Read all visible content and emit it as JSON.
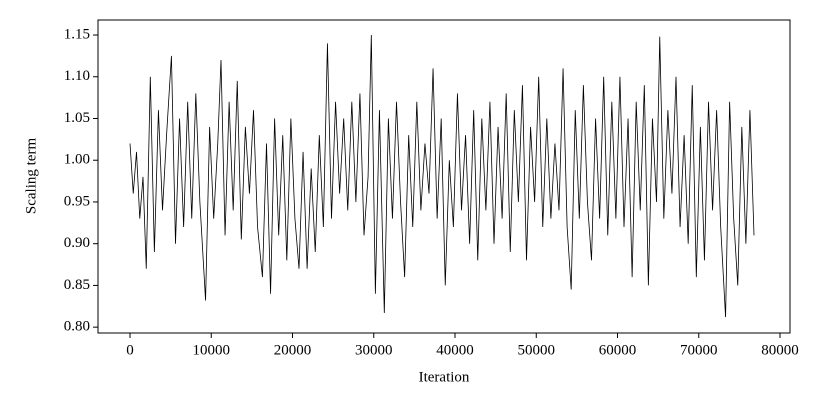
{
  "chart_data": {
    "type": "line",
    "xlabel": "Iteration",
    "ylabel": "Scaling term",
    "color": "#000000",
    "x": [
      0,
      400,
      800,
      1200,
      1600,
      2000,
      2500,
      3000,
      3500,
      4000,
      4500,
      5100,
      5600,
      6100,
      6600,
      7100,
      7600,
      8100,
      8600,
      9300,
      9800,
      10300,
      10800,
      11200,
      11700,
      12200,
      12700,
      13200,
      13700,
      14200,
      14700,
      15200,
      15700,
      16300,
      16800,
      17300,
      17800,
      18300,
      18800,
      19300,
      19800,
      20300,
      20800,
      21300,
      21800,
      22300,
      22800,
      23300,
      23800,
      24300,
      24800,
      25300,
      25800,
      26300,
      26800,
      27300,
      27800,
      28300,
      28800,
      29300,
      29700,
      30200,
      30700,
      31300,
      31800,
      32300,
      32800,
      33300,
      33800,
      34300,
      34800,
      35300,
      35800,
      36300,
      36800,
      37300,
      37800,
      38300,
      38800,
      39300,
      39800,
      40300,
      40800,
      41300,
      41800,
      42300,
      42800,
      43300,
      43800,
      44300,
      44800,
      45300,
      45800,
      46300,
      46800,
      47300,
      47800,
      48300,
      48800,
      49300,
      49800,
      50300,
      50800,
      51300,
      51800,
      52300,
      52800,
      53300,
      53800,
      54300,
      54800,
      55300,
      55800,
      56300,
      56800,
      57300,
      57800,
      58300,
      58800,
      59300,
      59800,
      60300,
      60800,
      61300,
      61800,
      62300,
      62800,
      63300,
      63800,
      64300,
      64800,
      65200,
      65700,
      66200,
      66700,
      67200,
      67700,
      68200,
      68700,
      69200,
      69700,
      70200,
      70700,
      71200,
      71700,
      72200,
      72700,
      73300,
      73800,
      74300,
      74800,
      75300,
      75800,
      76300,
      76800
    ],
    "values": [
      1.02,
      0.96,
      1.01,
      0.93,
      0.98,
      0.87,
      1.1,
      0.89,
      1.06,
      0.94,
      1.03,
      1.125,
      0.9,
      1.05,
      0.92,
      1.07,
      0.93,
      1.08,
      0.95,
      0.832,
      1.04,
      0.93,
      1.02,
      1.12,
      0.91,
      1.07,
      0.94,
      1.095,
      0.905,
      1.04,
      0.96,
      1.06,
      0.92,
      0.86,
      1.02,
      0.84,
      1.05,
      0.91,
      1.03,
      0.88,
      1.05,
      0.93,
      0.87,
      1.01,
      0.87,
      0.99,
      0.89,
      1.03,
      0.92,
      1.14,
      0.93,
      1.07,
      0.96,
      1.05,
      0.94,
      1.07,
      0.95,
      1.08,
      0.91,
      0.98,
      1.15,
      0.84,
      1.06,
      0.817,
      1.05,
      0.93,
      1.07,
      0.95,
      0.86,
      1.03,
      0.92,
      1.07,
      0.94,
      1.02,
      0.96,
      1.11,
      0.93,
      1.05,
      0.85,
      1.0,
      0.92,
      1.08,
      0.94,
      1.03,
      0.9,
      1.06,
      0.88,
      1.05,
      0.94,
      1.07,
      0.9,
      1.04,
      0.93,
      1.08,
      0.89,
      1.06,
      0.95,
      1.09,
      0.88,
      1.04,
      0.95,
      1.1,
      0.92,
      1.05,
      0.93,
      1.02,
      0.94,
      1.11,
      0.92,
      0.845,
      1.06,
      0.93,
      1.09,
      0.95,
      0.88,
      1.05,
      0.93,
      1.1,
      0.91,
      1.07,
      0.93,
      1.1,
      0.92,
      1.05,
      0.86,
      1.07,
      0.94,
      1.09,
      0.85,
      1.05,
      0.95,
      1.148,
      0.93,
      1.06,
      0.96,
      1.1,
      0.92,
      1.03,
      0.9,
      1.09,
      0.86,
      1.04,
      0.88,
      1.07,
      0.94,
      1.06,
      0.92,
      0.812,
      1.07,
      0.93,
      0.85,
      1.04,
      0.9,
      1.06,
      0.91
    ],
    "xlim": [
      -3938,
      81230
    ],
    "ylim": [
      0.793,
      1.168
    ],
    "xticks": [
      0,
      10000,
      20000,
      30000,
      40000,
      50000,
      60000,
      70000,
      80000
    ],
    "yticks": [
      {
        "value": 0.8,
        "label": "0.80"
      },
      {
        "value": 0.85,
        "label": "0.85"
      },
      {
        "value": 0.9,
        "label": "0.90"
      },
      {
        "value": 0.95,
        "label": "0.95"
      },
      {
        "value": 1.0,
        "label": "1.00"
      },
      {
        "value": 1.05,
        "label": "1.05"
      },
      {
        "value": 1.1,
        "label": "1.10"
      },
      {
        "value": 1.15,
        "label": "1.15"
      }
    ]
  }
}
